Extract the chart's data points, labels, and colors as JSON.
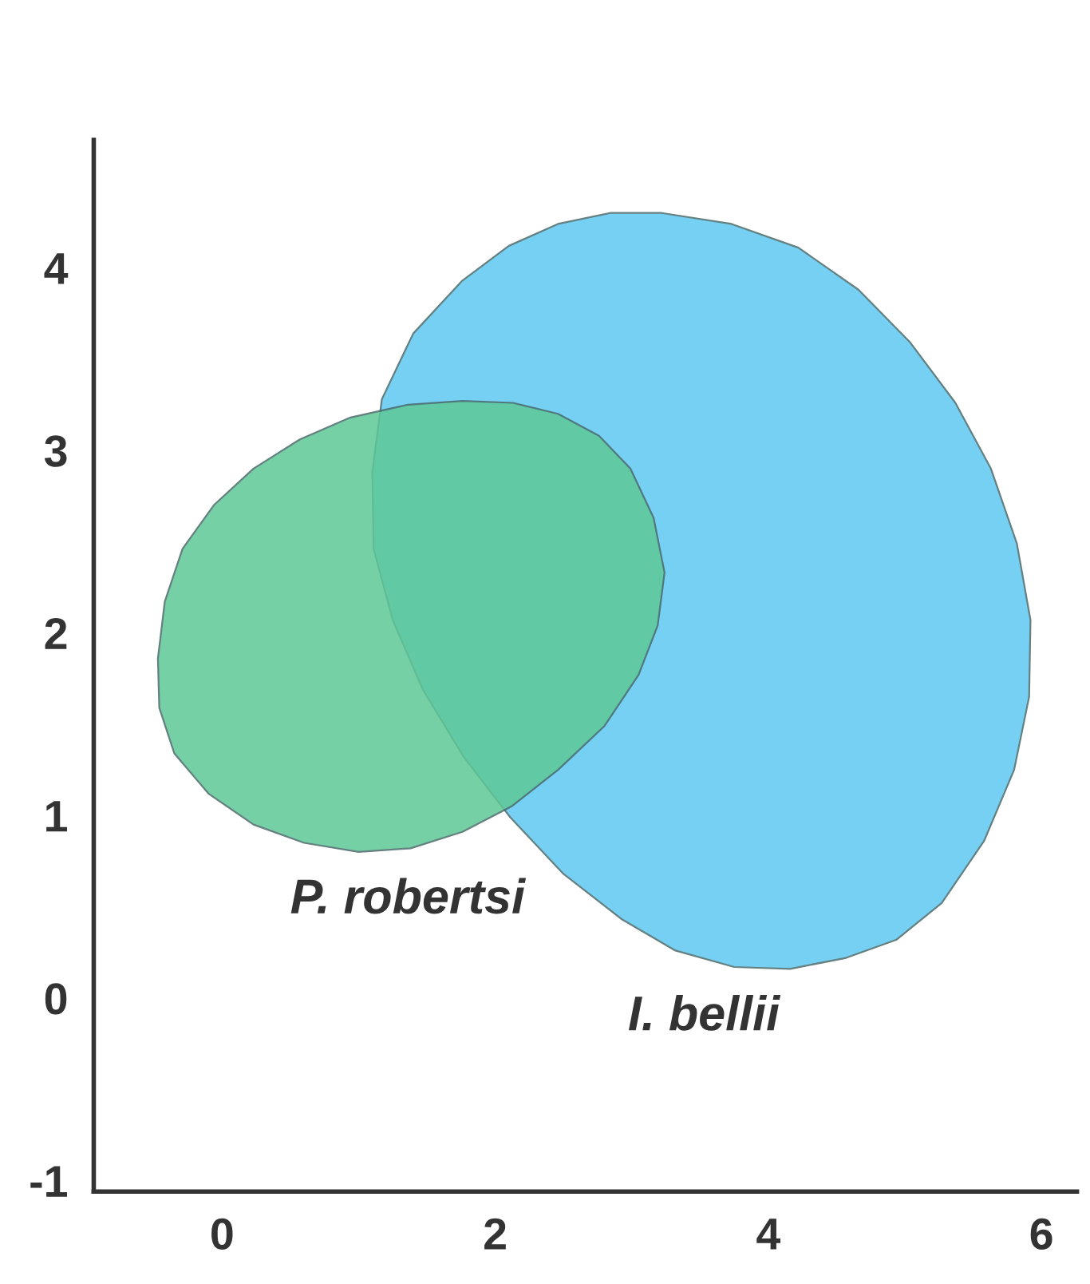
{
  "chart_data": {
    "type": "area",
    "series": [
      {
        "name": "P. robertsi",
        "color": "#5ec896",
        "x": [
          1.76,
          2.13,
          2.46,
          2.76,
          2.99,
          3.16,
          3.24,
          3.19,
          3.05,
          2.8,
          2.46,
          2.12,
          1.76,
          1.38,
          1.0,
          0.6,
          0.23,
          -0.1,
          -0.35,
          -0.46,
          -0.47,
          -0.42,
          -0.29,
          -0.06,
          0.23,
          0.57,
          0.94,
          1.36
        ],
        "values": [
          3.27,
          3.26,
          3.2,
          3.08,
          2.9,
          2.63,
          2.33,
          2.04,
          1.77,
          1.49,
          1.25,
          1.05,
          0.91,
          0.82,
          0.8,
          0.85,
          0.95,
          1.12,
          1.34,
          1.59,
          1.86,
          2.17,
          2.46,
          2.7,
          2.9,
          3.06,
          3.18,
          3.25
        ]
      },
      {
        "name": "I. bellii",
        "color": "#5ec8f2",
        "x": [
          3.22,
          3.73,
          4.22,
          4.66,
          5.04,
          5.37,
          5.63,
          5.82,
          5.92,
          5.91,
          5.8,
          5.58,
          5.27,
          4.94,
          4.57,
          4.16,
          3.75,
          3.32,
          2.93,
          2.5,
          2.11,
          1.77,
          1.47,
          1.25,
          1.11,
          1.1,
          1.17,
          1.4,
          1.76,
          2.1,
          2.46,
          2.84
        ],
        "values": [
          4.3,
          4.24,
          4.11,
          3.88,
          3.59,
          3.26,
          2.9,
          2.49,
          2.07,
          1.65,
          1.25,
          0.86,
          0.52,
          0.32,
          0.22,
          0.16,
          0.17,
          0.26,
          0.43,
          0.68,
          0.99,
          1.32,
          1.69,
          2.07,
          2.46,
          2.88,
          3.28,
          3.64,
          3.93,
          4.12,
          4.24,
          4.3
        ]
      }
    ],
    "xlim": [
      -0.94,
      6.26
    ],
    "ylim": [
      -1.06,
      4.7
    ],
    "xticks": [
      0,
      2,
      4,
      6
    ],
    "yticks": [
      -1,
      0,
      1,
      2,
      3,
      4
    ],
    "grid": false,
    "legend": false
  }
}
